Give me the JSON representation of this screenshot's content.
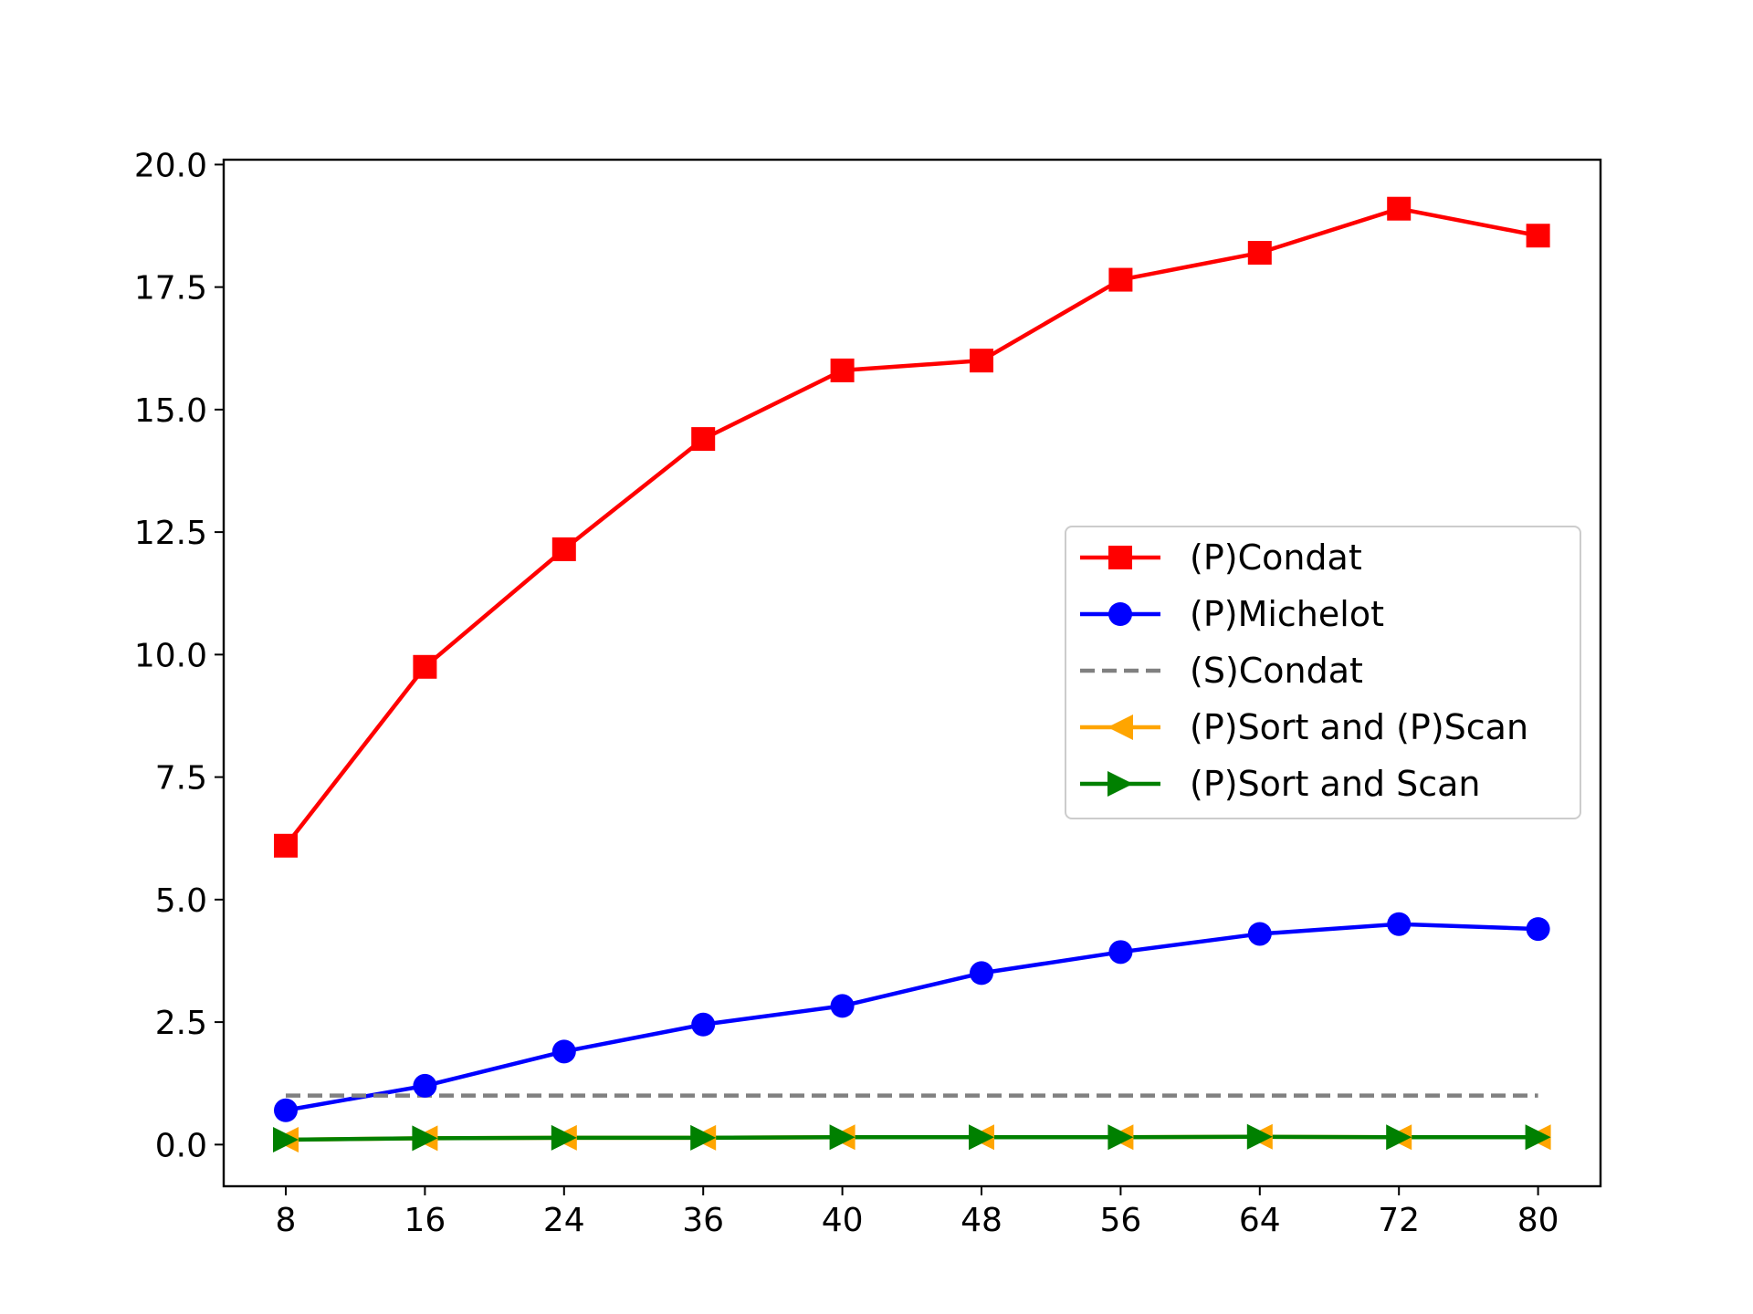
{
  "chart_data": {
    "type": "line",
    "title": "",
    "xlabel": "",
    "ylabel": "",
    "categories": [
      "8",
      "16",
      "24",
      "36",
      "40",
      "48",
      "56",
      "64",
      "72",
      "80"
    ],
    "ylim": [
      -0.85,
      20.1
    ],
    "y_ticks": [
      "0.0",
      "2.5",
      "5.0",
      "7.5",
      "10.0",
      "12.5",
      "15.0",
      "17.5",
      "20.0"
    ],
    "grid": false,
    "legend_position": "center-right",
    "series": [
      {
        "name": "(P)Condat",
        "color": "#ff0000",
        "marker": "square",
        "dashed": false,
        "values": [
          6.1,
          9.75,
          12.15,
          14.4,
          15.8,
          16.0,
          17.65,
          18.2,
          19.1,
          18.55
        ]
      },
      {
        "name": "(P)Michelot",
        "color": "#0000ff",
        "marker": "circle",
        "dashed": false,
        "values": [
          0.7,
          1.2,
          1.9,
          2.45,
          2.83,
          3.5,
          3.93,
          4.3,
          4.5,
          4.4
        ]
      },
      {
        "name": "(S)Condat",
        "color": "#808080",
        "marker": "none",
        "dashed": true,
        "values": [
          1.0,
          1.0,
          1.0,
          1.0,
          1.0,
          1.0,
          1.0,
          1.0,
          1.0,
          1.0
        ]
      },
      {
        "name": "(P)Sort and (P)Scan",
        "color": "#ffa500",
        "marker": "triangle-left",
        "dashed": false,
        "values": [
          0.1,
          0.13,
          0.14,
          0.14,
          0.15,
          0.15,
          0.15,
          0.16,
          0.15,
          0.15
        ]
      },
      {
        "name": "(P)Sort and Scan",
        "color": "#008000",
        "marker": "triangle-right",
        "dashed": false,
        "values": [
          0.1,
          0.13,
          0.14,
          0.14,
          0.15,
          0.15,
          0.15,
          0.16,
          0.15,
          0.15
        ]
      }
    ]
  }
}
